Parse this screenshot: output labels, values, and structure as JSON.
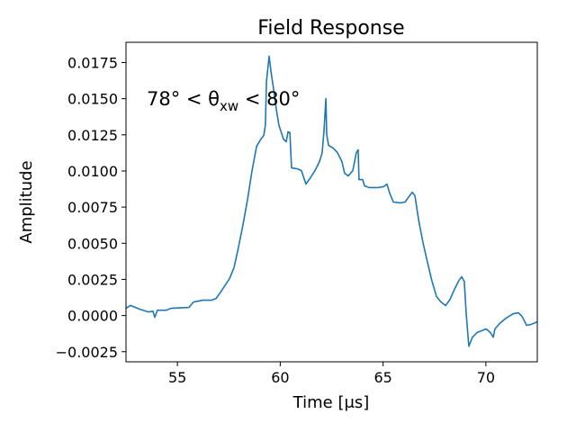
{
  "chart_data": {
    "type": "line",
    "title": "Field Response",
    "xlabel": "Time [μs]",
    "ylabel": "Amplitude",
    "annotation": {
      "before": "78° < θ",
      "sub": "xw",
      "after": " < 80°"
    },
    "color": "#1f77b4",
    "xlim": [
      52.5,
      72.5
    ],
    "ylim": [
      -0.0032,
      0.0189
    ],
    "xticks": [
      55,
      60,
      65,
      70
    ],
    "yticks": [
      {
        "value": -0.0025,
        "label": "−0.0025"
      },
      {
        "value": 0,
        "label": "0.0000"
      },
      {
        "value": 0.0025,
        "label": "0.0025"
      },
      {
        "value": 0.005,
        "label": "0.0050"
      },
      {
        "value": 0.0075,
        "label": "0.0075"
      },
      {
        "value": 0.01,
        "label": "0.0100"
      },
      {
        "value": 0.0125,
        "label": "0.0125"
      },
      {
        "value": 0.015,
        "label": "0.0150"
      },
      {
        "value": 0.0175,
        "label": "0.0175"
      }
    ],
    "grid": false,
    "x": [
      52.5,
      52.72,
      53.16,
      53.59,
      53.81,
      53.9,
      54.03,
      54.47,
      54.69,
      55.56,
      55.78,
      56.22,
      56.66,
      56.88,
      57.1,
      57.53,
      57.75,
      57.97,
      58.19,
      58.41,
      58.63,
      58.85,
      59.06,
      59.2,
      59.28,
      59.33,
      59.46,
      59.55,
      59.68,
      59.81,
      59.94,
      60.16,
      60.29,
      60.38,
      60.47,
      60.55,
      60.82,
      61.03,
      61.25,
      61.47,
      61.69,
      61.91,
      62.04,
      62.13,
      62.22,
      62.26,
      62.35,
      62.57,
      62.78,
      63.0,
      63.13,
      63.31,
      63.53,
      63.7,
      63.79,
      63.83,
      64.01,
      64.1,
      64.32,
      64.75,
      65.02,
      65.19,
      65.32,
      65.5,
      65.85,
      66.07,
      66.29,
      66.42,
      66.55,
      66.73,
      66.94,
      67.16,
      67.38,
      67.6,
      67.82,
      68.04,
      68.26,
      68.47,
      68.69,
      68.82,
      68.95,
      69.04,
      69.17,
      69.35,
      69.57,
      70.01,
      70.22,
      70.36,
      70.44,
      70.66,
      70.97,
      71.32,
      71.58,
      71.76,
      71.98,
      72.19,
      72.5
    ],
    "values": [
      0.0005,
      0.0007,
      0.00044,
      0.00025,
      0.0003,
      -0.00012,
      0.00037,
      0.00037,
      0.0005,
      0.00056,
      0.00093,
      0.00106,
      0.00106,
      0.00118,
      0.00162,
      0.00255,
      0.0033,
      0.00473,
      0.00629,
      0.00803,
      0.01003,
      0.0117,
      0.0122,
      0.01246,
      0.01321,
      0.01619,
      0.01794,
      0.01688,
      0.01563,
      0.01426,
      0.01314,
      0.0122,
      0.01202,
      0.01271,
      0.01265,
      0.01021,
      0.01015,
      0.01003,
      0.00909,
      0.00953,
      0.01003,
      0.01065,
      0.01127,
      0.01283,
      0.01501,
      0.01252,
      0.01177,
      0.01159,
      0.01127,
      0.01065,
      0.00984,
      0.00966,
      0.01003,
      0.01127,
      0.01146,
      0.0094,
      0.0094,
      0.00897,
      0.00885,
      0.00885,
      0.00891,
      0.00909,
      0.00847,
      0.00785,
      0.00779,
      0.00785,
      0.00829,
      0.00853,
      0.00829,
      0.0066,
      0.00505,
      0.00368,
      0.00237,
      0.00131,
      0.00093,
      0.00069,
      0.00112,
      0.00181,
      0.00243,
      0.00268,
      0.00237,
      0.00019,
      -0.00212,
      -0.0015,
      -0.00118,
      -0.00093,
      -0.00118,
      -0.0015,
      -0.00093,
      -0.00056,
      -0.00019,
      0.00012,
      0.00019,
      -6e-05,
      -0.00068,
      -0.00062,
      -0.00044
    ]
  }
}
